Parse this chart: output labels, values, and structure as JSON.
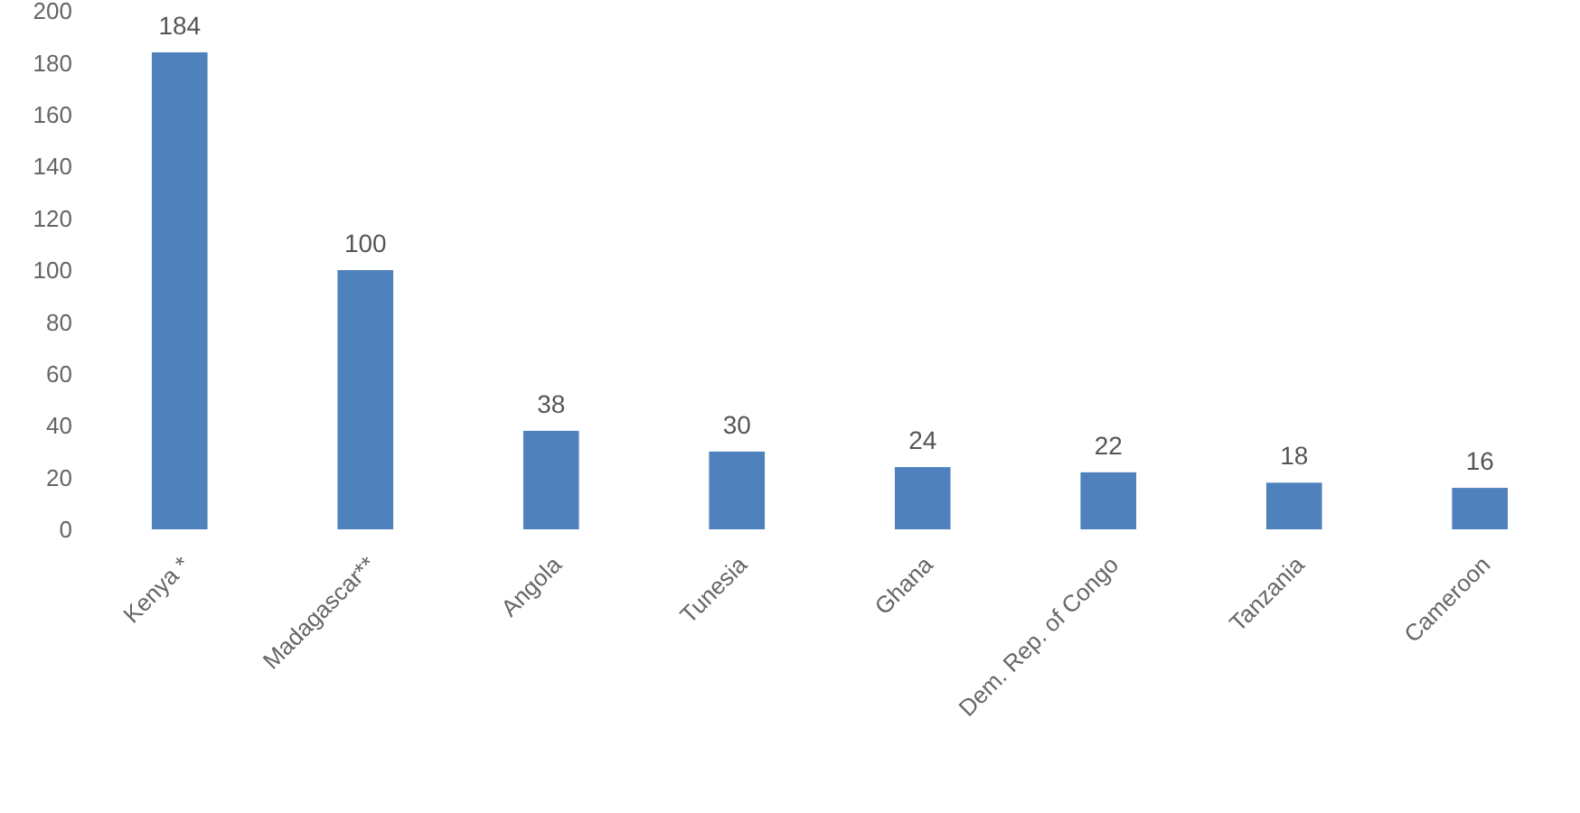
{
  "chart_data": {
    "type": "bar",
    "categories": [
      "Kenya *",
      "Madagascar**",
      "Angola",
      "Tunesia",
      "Ghana",
      "Dem. Rep. of Congo",
      "Tanzania",
      "Cameroon"
    ],
    "values": [
      184,
      100,
      38,
      30,
      24,
      22,
      18,
      16
    ],
    "color": "#4f81bd",
    "ylim": [
      0,
      200
    ],
    "yticks": [
      0,
      20,
      40,
      60,
      80,
      100,
      120,
      140,
      160,
      180,
      200
    ],
    "data_labels": true
  }
}
